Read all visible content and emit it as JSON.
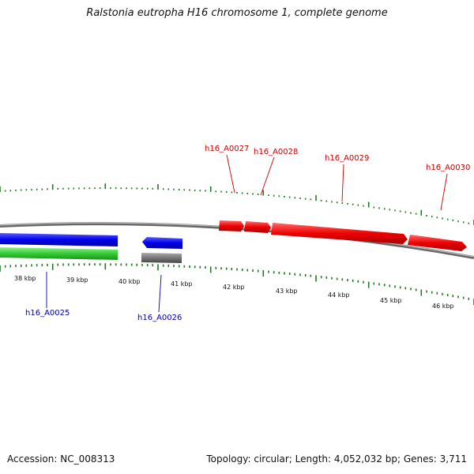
{
  "title": "Ralstonia eutropha H16 chromosome 1, complete genome",
  "footer": {
    "accession": "Accession: NC_008313",
    "stats": "Topology: circular; Length: 4,052,032 bp; Genes: 3,711"
  },
  "colors": {
    "forward": "#ff0000",
    "reverse": "#0000ee",
    "cds": "#33cc33",
    "other": "#777777",
    "backbone": "#888888",
    "ticks": "#227722",
    "forward_label": "#cc0000",
    "reverse_label": "#0000aa"
  },
  "scale": {
    "unit": "kbp",
    "labels": [
      "38 kbp",
      "39 kbp",
      "40 kbp",
      "41 kbp",
      "42 kbp",
      "43 kbp",
      "44 kbp",
      "45 kbp",
      "46 kbp"
    ]
  },
  "genes": [
    {
      "id": "h16_A0025",
      "strand": "-"
    },
    {
      "id": "h16_A0026",
      "strand": "-"
    },
    {
      "id": "h16_A0027",
      "strand": "+"
    },
    {
      "id": "h16_A0028",
      "strand": "+"
    },
    {
      "id": "h16_A0029",
      "strand": "+"
    },
    {
      "id": "h16_A0030",
      "strand": "+"
    }
  ]
}
